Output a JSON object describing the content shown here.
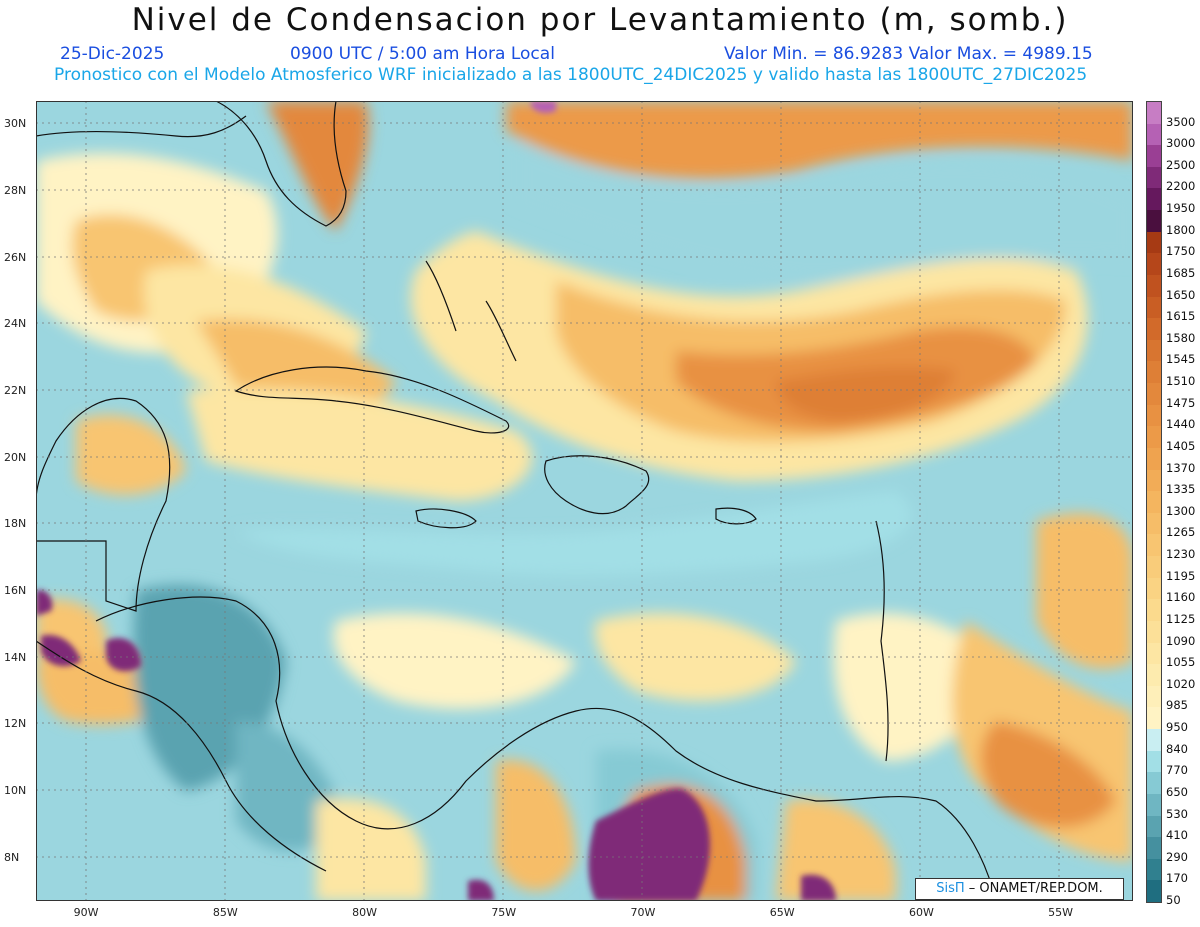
{
  "header": {
    "title": "Nivel de Condensacion por Levantamiento (m, somb.)",
    "date": "25-Dic-2025",
    "time": "0900 UTC / 5:00 am Hora Local",
    "minmax": "Valor Min. = 86.9283  Valor Max. = 4989.15",
    "model_line": "Pronostico con el Modelo Atmosferico WRF inicializado a las 1800UTC_24DIC2025 y valido hasta las  1800UTC_27DIC2025"
  },
  "axes": {
    "lat_labels": [
      "30N",
      "28N",
      "26N",
      "24N",
      "22N",
      "20N",
      "18N",
      "16N",
      "14N",
      "12N",
      "10N",
      "8N"
    ],
    "lat_values": [
      30,
      28,
      26,
      24,
      22,
      20,
      18,
      16,
      14,
      12,
      10,
      8
    ],
    "lon_labels": [
      "90W",
      "85W",
      "80W",
      "75W",
      "70W",
      "65W",
      "60W",
      "55W"
    ],
    "lon_values": [
      -90,
      -85,
      -80,
      -75,
      -70,
      -65,
      -60,
      -55
    ],
    "lat_range": [
      6.7,
      30.7
    ],
    "lon_range": [
      -91.8,
      -52.4
    ]
  },
  "colorbar": {
    "labels": [
      "3500",
      "3000",
      "2500",
      "2200",
      "1950",
      "1800",
      "1750",
      "1685",
      "1650",
      "1615",
      "1580",
      "1545",
      "1510",
      "1475",
      "1440",
      "1405",
      "1370",
      "1335",
      "1300",
      "1265",
      "1230",
      "1195",
      "1160",
      "1125",
      "1090",
      "1055",
      "1020",
      "985",
      "950",
      "840",
      "770",
      "650",
      "530",
      "410",
      "290",
      "170",
      "50"
    ],
    "colors": [
      "#c77dc4",
      "#b561b4",
      "#9a3f94",
      "#7f2a78",
      "#65185d",
      "#4a0f3e",
      "#a63a14",
      "#b5461a",
      "#c0521f",
      "#c95e24",
      "#d26a2a",
      "#d87530",
      "#de7f36",
      "#e3883c",
      "#e89142",
      "#ec9a48",
      "#efa34f",
      "#f2ac57",
      "#f4b55f",
      "#f6bd68",
      "#f8c571",
      "#f9cc7a",
      "#fad383",
      "#fbda8d",
      "#fce098",
      "#fde6a3",
      "#fdebae",
      "#feefb9",
      "#fff3c4",
      "#c9eef2",
      "#a2dfe6",
      "#86cad4",
      "#6fb6c2",
      "#5aa3b0",
      "#45909f",
      "#30808f",
      "#1f6e80"
    ]
  },
  "credit": {
    "logo": "SisΠ",
    "text": " – ONAMET/REP.DOM."
  }
}
